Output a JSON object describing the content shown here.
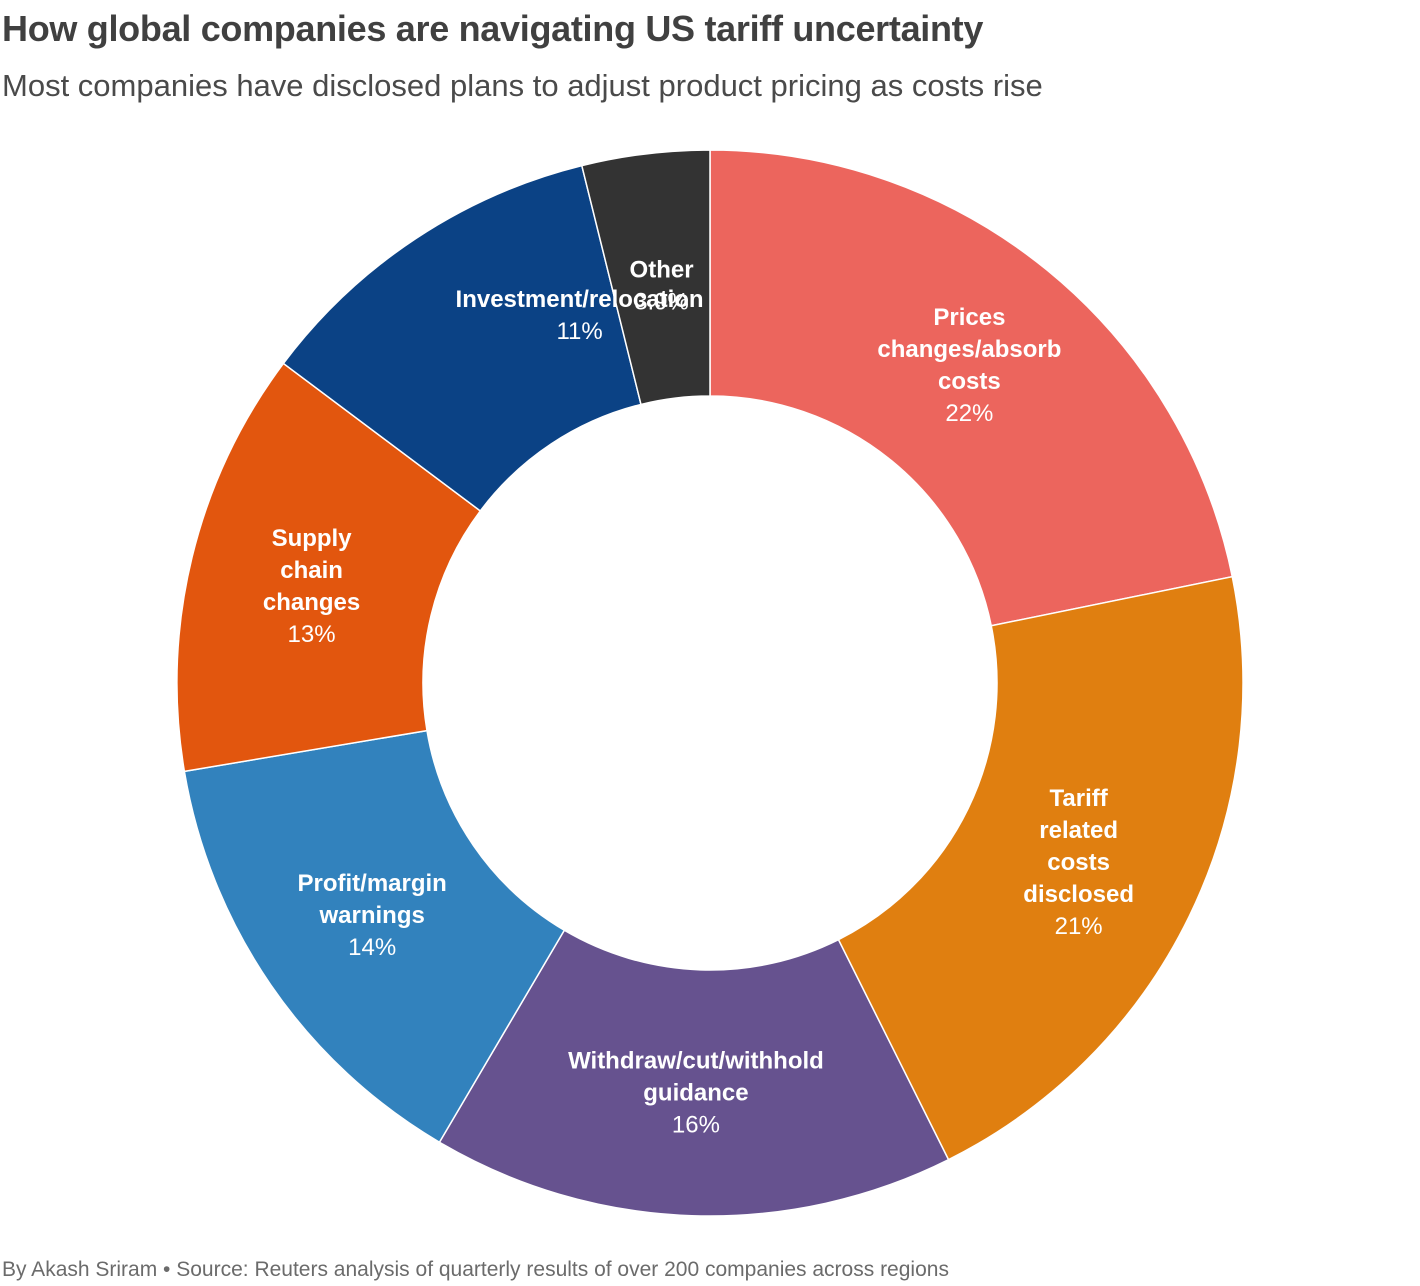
{
  "header": {
    "title": "How global companies are navigating US tariff uncertainty",
    "subtitle": "Most companies have disclosed plans to adjust product pricing as costs rise"
  },
  "footer": {
    "credit": "By Akash Sriram • Source: Reuters analysis of quarterly results of over 200 companies across regions"
  },
  "chart_data": {
    "type": "pie",
    "variant": "donut",
    "title": "How global companies are navigating US tariff uncertainty",
    "subtitle": "Most companies have disclosed plans to adjust product pricing as costs rise",
    "unit": "%",
    "start_angle_deg": 0,
    "direction": "clockwise",
    "slices": [
      {
        "key": "prices",
        "label_lines": [
          "Prices",
          "changes/absorb",
          "costs"
        ],
        "value": 22,
        "value_label": "22%",
        "color": "#ec655d"
      },
      {
        "key": "tariff",
        "label_lines": [
          "Tariff",
          "related",
          "costs",
          "disclosed"
        ],
        "value": 21,
        "value_label": "21%",
        "color": "#e07f10"
      },
      {
        "key": "guidance",
        "label_lines": [
          "Withdraw/cut/withhold",
          "guidance"
        ],
        "value": 16,
        "value_label": "16%",
        "color": "#66528f"
      },
      {
        "key": "profit",
        "label_lines": [
          "Profit/margin",
          "warnings"
        ],
        "value": 14,
        "value_label": "14%",
        "color": "#3282bd"
      },
      {
        "key": "supply",
        "label_lines": [
          "Supply",
          "chain",
          "changes"
        ],
        "value": 13,
        "value_label": "13%",
        "color": "#e2560e"
      },
      {
        "key": "investment",
        "label_lines": [
          "Investment/relocation"
        ],
        "value": 11,
        "value_label": "11%",
        "color": "#0b4285"
      },
      {
        "key": "other",
        "label_lines": [
          "Other"
        ],
        "value": 3.9,
        "value_label": "3.9%",
        "color": "#333333"
      }
    ]
  }
}
